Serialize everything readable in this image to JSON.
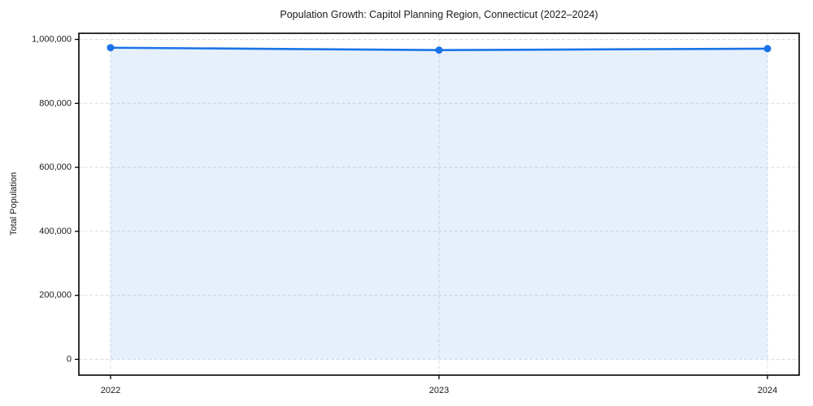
{
  "figure": {
    "background": "#ffffff"
  },
  "chart_data": {
    "type": "area",
    "title": "Population Growth: Capitol Planning Region, Connecticut (2022–2024)",
    "xlabel": "",
    "ylabel": "Total Population",
    "x": [
      "2022",
      "2023",
      "2024"
    ],
    "series": [
      {
        "name": "Total Population",
        "values": [
          974000,
          966500,
          971000
        ]
      }
    ],
    "ylim": [
      0,
      1000000
    ],
    "yticks": [
      0,
      200000,
      400000,
      600000,
      800000,
      1000000
    ],
    "ytick_labels": [
      "0",
      "200,000",
      "400,000",
      "600,000",
      "800,000",
      "1,000,000"
    ],
    "xtick_labels": [
      "2022",
      "2023",
      "2024"
    ],
    "grid": true,
    "grid_style": "dashed",
    "legend": false,
    "marker": "circle",
    "colors": {
      "line": "#1a73e8",
      "marker": "#1a73e8",
      "fill": "rgba(26,115,232,0.11)",
      "grid": "#dcdcdc",
      "spine": "#000000",
      "text": "#1a1a1a"
    }
  }
}
